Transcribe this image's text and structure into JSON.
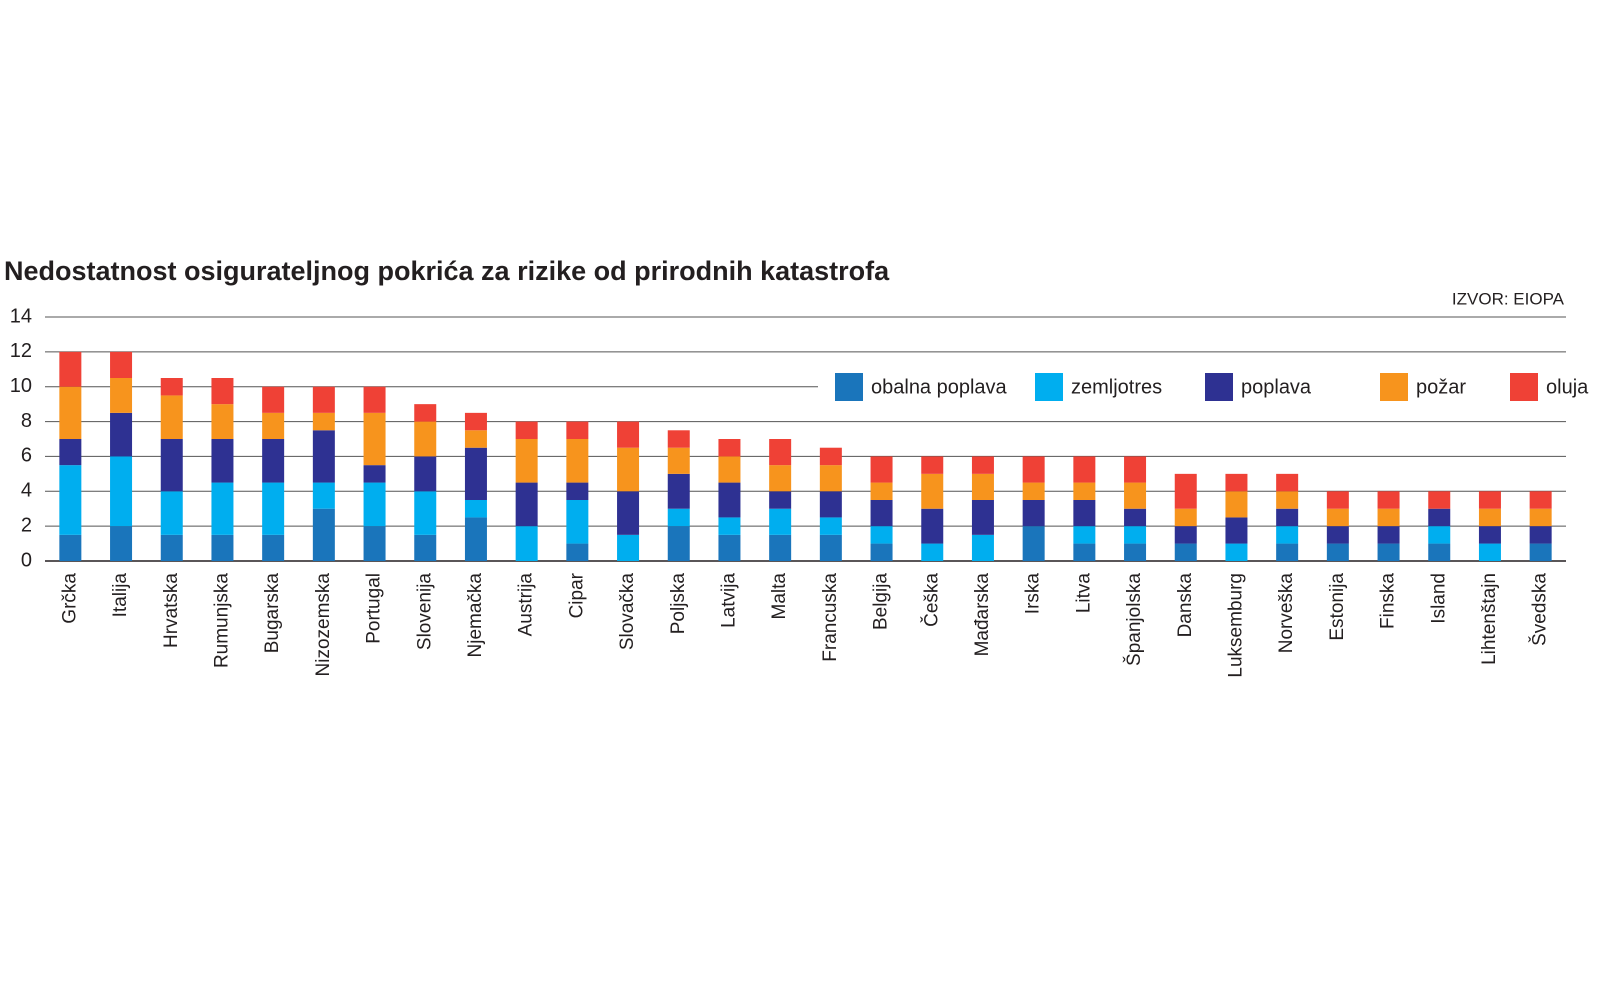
{
  "chart_data": {
    "type": "stacked-bar",
    "title": "Nedostatnost osigurateljnog pokrića za rizike od prirodnih katastrofa",
    "source": "IZVOR: EIOPA",
    "categories": [
      "Grčka",
      "Italija",
      "Hrvatska",
      "Rumunjska",
      "Bugarska",
      "Nizozemska",
      "Portugal",
      "Slovenija",
      "Njemačka",
      "Austrija",
      "Cipar",
      "Slovačka",
      "Poljska",
      "Latvija",
      "Malta",
      "Francuska",
      "Belgija",
      "Češka",
      "Mađarska",
      "Irska",
      "Litva",
      "Španjolska",
      "Danska",
      "Luksemburg",
      "Norveška",
      "Estonija",
      "Finska",
      "Island",
      "Lihtenštajn",
      "Švedska"
    ],
    "series": [
      {
        "name": "obalna poplava",
        "color": "#1a75bb",
        "values": [
          1.5,
          2,
          1.5,
          1.5,
          1.5,
          3,
          2,
          1.5,
          2.5,
          0,
          1,
          0,
          2,
          1.5,
          1.5,
          1.5,
          1,
          0,
          0,
          2,
          1,
          1,
          1,
          0,
          1,
          1,
          1,
          1,
          0,
          1
        ]
      },
      {
        "name": "zemljotres",
        "color": "#00aeef",
        "values": [
          4,
          4,
          2.5,
          3,
          3,
          1.5,
          2.5,
          2.5,
          1,
          2,
          2.5,
          1.5,
          1,
          1,
          1.5,
          1,
          1,
          1,
          1.5,
          0,
          1,
          1,
          0,
          1,
          1,
          0,
          0,
          1,
          1,
          0
        ]
      },
      {
        "name": "poplava",
        "color": "#2e3192",
        "values": [
          1.5,
          2.5,
          3,
          2.5,
          2.5,
          3,
          1,
          2,
          3,
          2.5,
          1,
          2.5,
          2,
          2,
          1,
          1.5,
          1.5,
          2,
          2,
          1.5,
          1.5,
          1,
          1,
          1.5,
          1,
          1,
          1,
          1,
          1,
          1
        ]
      },
      {
        "name": "požar",
        "color": "#f7941d",
        "values": [
          3,
          2,
          2.5,
          2,
          1.5,
          1,
          3,
          2,
          1,
          2.5,
          2.5,
          2.5,
          1.5,
          1.5,
          1.5,
          1.5,
          1,
          2,
          1.5,
          1,
          1,
          1.5,
          1,
          1.5,
          1,
          1,
          1,
          0,
          1,
          1
        ]
      },
      {
        "name": "oluja",
        "color": "#ef4136",
        "values": [
          2,
          1.5,
          1,
          1.5,
          1.5,
          1.5,
          1.5,
          1,
          1,
          1,
          1,
          1.5,
          1,
          1,
          1.5,
          1,
          1.5,
          1,
          1,
          1.5,
          1.5,
          1.5,
          2,
          1,
          1,
          1,
          1,
          1,
          1,
          1
        ]
      }
    ],
    "ylim": [
      0,
      14
    ],
    "yticks": [
      0,
      2,
      4,
      6,
      8,
      10,
      12,
      14
    ],
    "grid": true,
    "legend": "top-right"
  }
}
